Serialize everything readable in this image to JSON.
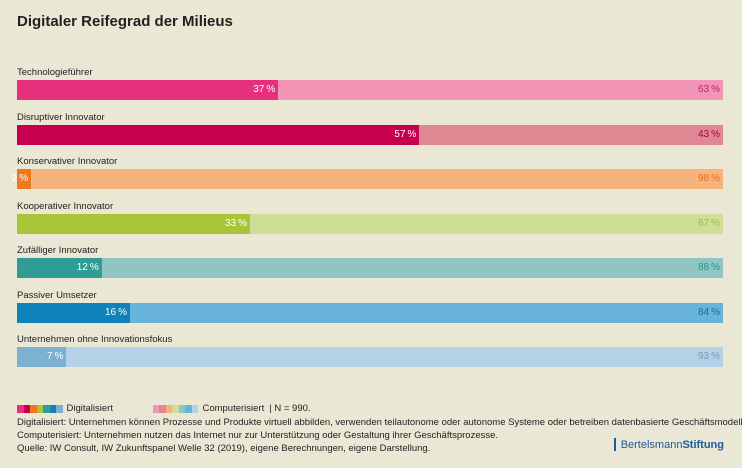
{
  "title": "Digitaler Reifegrad der Milieus",
  "chart_data": {
    "type": "bar",
    "orientation": "horizontal",
    "stacked": true,
    "unit": "%",
    "categories": [
      "Technologieführer",
      "Disruptiver Innovator",
      "Konservativer Innovator",
      "Kooperativer Innovator",
      "Zufälliger Innovator",
      "Passiver Umsetzer",
      "Unternehmen ohne Innovationsfokus"
    ],
    "series": [
      {
        "name": "Digitalisiert",
        "values": [
          37,
          57,
          2,
          33,
          12,
          16,
          7
        ]
      },
      {
        "name": "Computerisiert",
        "values": [
          63,
          43,
          98,
          67,
          88,
          84,
          93
        ]
      }
    ],
    "xlim": [
      0,
      100
    ],
    "colors_dark": [
      "#e7307b",
      "#c6004f",
      "#ee7a1f",
      "#a8c53a",
      "#2f9d96",
      "#0d82bb",
      "#7cb1d1"
    ],
    "colors_light": [
      "#f295b7",
      "#e08794",
      "#f6b47c",
      "#d0dd96",
      "#8fc6c4",
      "#68b3da",
      "#b4d2e6"
    ],
    "label_colors_dark": [
      "#ffffff",
      "#ffffff",
      "#ffffff",
      "#ffffff",
      "#ffffff",
      "#ffffff",
      "#ffffff"
    ],
    "label_colors_light": [
      "#c4206a",
      "#b0003f",
      "#e0701d",
      "#a4be3c",
      "#24948e",
      "#1070a8",
      "#6c9ec0"
    ]
  },
  "legend": {
    "digital_label": "Digitalisiert",
    "computer_label": "Computerisiert",
    "sample": "|  N = 990."
  },
  "notes": {
    "line1": "Digitalisiert: Unternehmen können Prozesse und Produkte virtuell abbilden, verwenden teilautonome oder autonome Systeme oder betreiben datenbasierte Geschäftsmodelle.",
    "line2": "Computerisiert: Unternehmen nutzen das Internet nur zur Unterstützung oder Gestaltung ihrer Geschäftsprozesse.",
    "line3": "Quelle: IW Consult, IW Zukunftspanel Welle 32 (2019), eigene Berechnungen, eigene Darstellung."
  },
  "brand": {
    "part1": "Bertelsmann",
    "part2": "Stiftung"
  }
}
